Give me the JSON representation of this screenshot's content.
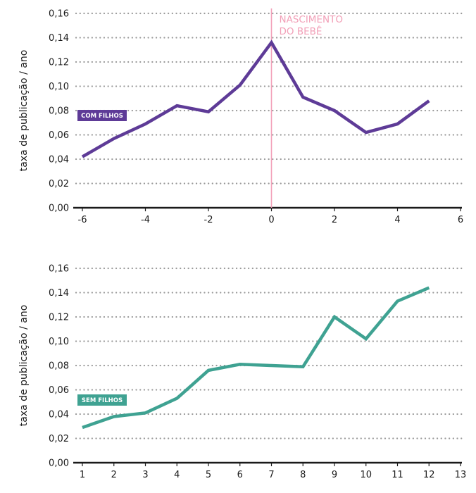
{
  "chart_data": [
    {
      "type": "line",
      "ylabel": "taxa de publicação / ano",
      "ylim": [
        0,
        0.16
      ],
      "yticks": [
        "0,00",
        "0,02",
        "0,04",
        "0,06",
        "0,08",
        "0,10",
        "0,12",
        "0,14",
        "0,16"
      ],
      "xlim": [
        -6,
        6
      ],
      "xticks": [
        "-6",
        "-4",
        "-2",
        "0",
        "2",
        "4",
        "6"
      ],
      "grid": true,
      "series": [
        {
          "name": "COM FILHOS",
          "color": "#5e3b97",
          "x": [
            -6,
            -5,
            -4,
            -3,
            -2,
            -1,
            0,
            1,
            2,
            3,
            4,
            5
          ],
          "values": [
            0.042,
            0.057,
            0.069,
            0.084,
            0.079,
            0.101,
            0.136,
            0.091,
            0.08,
            0.062,
            0.069,
            0.088
          ]
        }
      ],
      "annotation": {
        "x": 0,
        "lines": [
          "NASCIMENTO",
          "DO BEBÊ"
        ],
        "color": "#f2a0b8"
      }
    },
    {
      "type": "line",
      "ylabel": "taxa de publicação / ano",
      "ylim": [
        0,
        0.16
      ],
      "yticks": [
        "0,00",
        "0,02",
        "0,04",
        "0,06",
        "0,08",
        "0,10",
        "0,12",
        "0,14",
        "0,16"
      ],
      "xlim": [
        1,
        13
      ],
      "xticks": [
        "1",
        "2",
        "3",
        "4",
        "5",
        "6",
        "7",
        "8",
        "9",
        "10",
        "11",
        "12",
        "13"
      ],
      "grid": true,
      "series": [
        {
          "name": "SEM FILHOS",
          "color": "#3fa292",
          "x": [
            1,
            2,
            3,
            4,
            5,
            6,
            7,
            8,
            9,
            10,
            11,
            12
          ],
          "values": [
            0.029,
            0.038,
            0.041,
            0.053,
            0.076,
            0.081,
            0.08,
            0.079,
            0.12,
            0.102,
            0.133,
            0.144
          ]
        }
      ]
    }
  ]
}
